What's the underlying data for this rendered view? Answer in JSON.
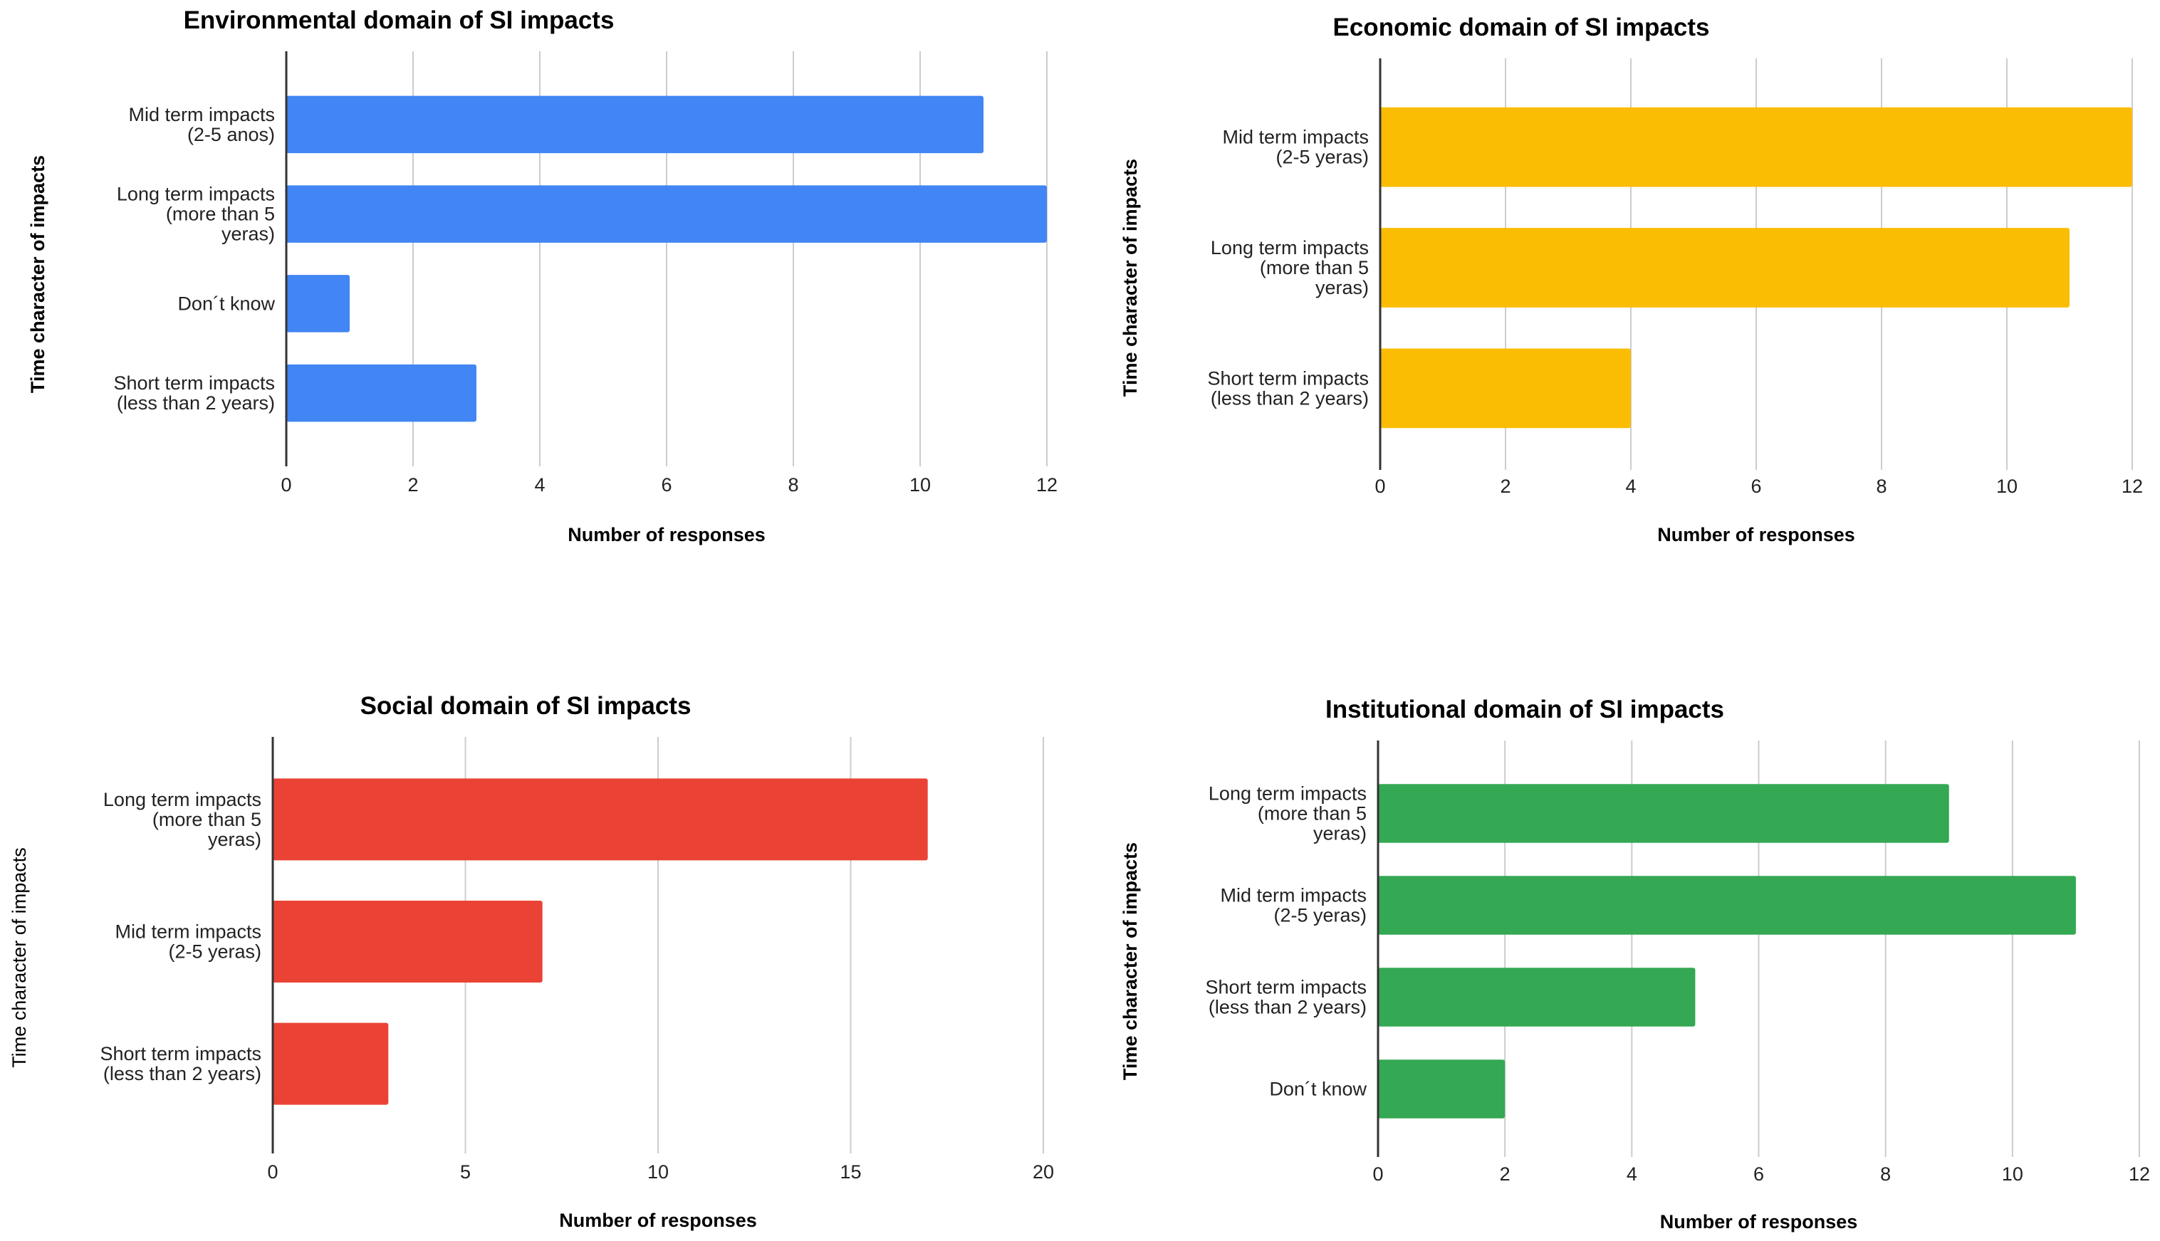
{
  "chart_data": [
    {
      "type": "bar",
      "orientation": "horizontal",
      "title": "Environmental domain of SI impacts",
      "xlabel": "Number of responses",
      "ylabel": "Time character of impacts",
      "color": "#4285F4",
      "xlim": [
        0,
        12
      ],
      "xticks": [
        "0",
        "2",
        "4",
        "6",
        "8",
        "10",
        "12"
      ],
      "categories": [
        [
          "Mid term impacts",
          "(2-5 anos)"
        ],
        [
          "Long term impacts",
          "(more than 5",
          "yeras)"
        ],
        [
          "Don´t know"
        ],
        [
          "Short term impacts",
          "(less than 2 years)"
        ]
      ],
      "values": [
        11,
        12,
        1,
        3
      ]
    },
    {
      "type": "bar",
      "orientation": "horizontal",
      "title": "Economic domain of SI impacts",
      "xlabel": "Number of responses",
      "ylabel": "Time character of impacts",
      "color": "#FBBC04",
      "xlim": [
        0,
        12
      ],
      "xticks": [
        "0",
        "2",
        "4",
        "6",
        "8",
        "10",
        "12"
      ],
      "categories": [
        [
          "Mid term impacts",
          "(2-5 yeras)"
        ],
        [
          "Long term impacts",
          "(more than 5",
          "yeras)"
        ],
        [
          "Short term impacts",
          "(less than 2 years)"
        ]
      ],
      "values": [
        12,
        11,
        4
      ]
    },
    {
      "type": "bar",
      "orientation": "horizontal",
      "title": "Social domain of SI impacts",
      "xlabel": "Number of responses",
      "ylabel": "Time character of impacts",
      "ylabel_bold": false,
      "color": "#EA4335",
      "xlim": [
        0,
        20
      ],
      "xticks": [
        "0",
        "5",
        "10",
        "15",
        "20"
      ],
      "categories": [
        [
          "Long term impacts",
          "(more than 5",
          "yeras)"
        ],
        [
          "Mid term impacts",
          "(2-5 yeras)"
        ],
        [
          "Short term impacts",
          "(less than 2 years)"
        ]
      ],
      "values": [
        17,
        7,
        3
      ]
    },
    {
      "type": "bar",
      "orientation": "horizontal",
      "title": "Institutional domain of SI impacts",
      "xlabel": "Number of responses",
      "ylabel": "Time character of impacts",
      "color": "#34A853",
      "xlim": [
        0,
        12
      ],
      "xticks": [
        "0",
        "2",
        "4",
        "6",
        "8",
        "10",
        "12"
      ],
      "categories": [
        [
          "Long term impacts",
          "(more than 5",
          "yeras)"
        ],
        [
          "Mid term impacts",
          "(2-5 yeras)"
        ],
        [
          "Short term impacts",
          "(less than 2 years)"
        ],
        [
          "Don´t know"
        ]
      ],
      "values": [
        9,
        11,
        5,
        2
      ]
    }
  ]
}
